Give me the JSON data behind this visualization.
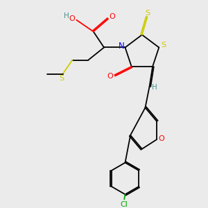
{
  "bg_color": "#ebebeb",
  "atom_colors": {
    "C": "#000000",
    "H": "#4a9090",
    "O": "#ff0000",
    "N": "#0000ff",
    "S": "#cccc00",
    "Cl": "#00aa00"
  },
  "bond_color": "#000000"
}
